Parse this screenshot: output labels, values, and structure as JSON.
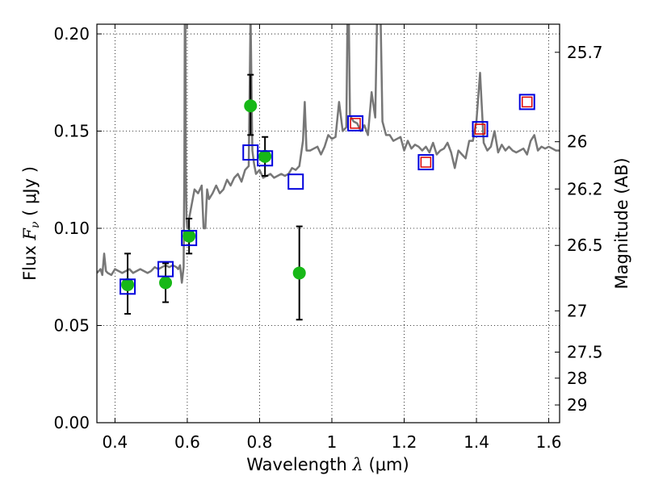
{
  "chart_data": {
    "type": "scatter",
    "xlabel": "Wavelength  λ (μm)",
    "xlabel_prefix": "Wavelength  ",
    "xlabel_sym": "λ",
    "xlabel_unit": " (μm)",
    "ylabel": "Flux  Fν  ( μJy )",
    "ylabel_prefix": "Flux  ",
    "ylabel_sym": "F",
    "ylabel_sub": "ν",
    "ylabel_unit": "  ( μJy )",
    "y2label": "Magnitude (AB)",
    "xlim": [
      0.35,
      1.63
    ],
    "ylim": [
      0.0,
      0.205
    ],
    "grid": true,
    "x_ticks": [
      {
        "v": 0.4,
        "label": "0.4"
      },
      {
        "v": 0.6,
        "label": "0.6"
      },
      {
        "v": 0.8,
        "label": "0.8"
      },
      {
        "v": 1.0,
        "label": "1"
      },
      {
        "v": 1.2,
        "label": "1.2"
      },
      {
        "v": 1.4,
        "label": "1.4"
      },
      {
        "v": 1.6,
        "label": "1.6"
      }
    ],
    "y_ticks": [
      {
        "v": 0.0,
        "label": "0.00"
      },
      {
        "v": 0.05,
        "label": "0.05"
      },
      {
        "v": 0.1,
        "label": "0.10"
      },
      {
        "v": 0.15,
        "label": "0.15"
      },
      {
        "v": 0.2,
        "label": "0.20"
      }
    ],
    "mag_ticks": [
      {
        "v": 25.7,
        "label": "25.7"
      },
      {
        "v": 26.0,
        "label": "26"
      },
      {
        "v": 26.2,
        "label": "26.2"
      },
      {
        "v": 26.5,
        "label": "26.5"
      },
      {
        "v": 27.0,
        "label": "27"
      },
      {
        "v": 27.5,
        "label": "27.5"
      },
      {
        "v": 28.0,
        "label": "28"
      },
      {
        "v": 29.0,
        "label": "29"
      }
    ],
    "series": [
      {
        "type": "line",
        "color": "#777777",
        "x": [
          0.35,
          0.36,
          0.365,
          0.37,
          0.375,
          0.38,
          0.39,
          0.4,
          0.41,
          0.42,
          0.43,
          0.44,
          0.45,
          0.46,
          0.47,
          0.48,
          0.49,
          0.5,
          0.51,
          0.52,
          0.53,
          0.54,
          0.55,
          0.56,
          0.57,
          0.575,
          0.58,
          0.585,
          0.59,
          0.592,
          0.594,
          0.596,
          0.598,
          0.6,
          0.61,
          0.62,
          0.63,
          0.64,
          0.645,
          0.65,
          0.655,
          0.66,
          0.67,
          0.68,
          0.69,
          0.7,
          0.71,
          0.72,
          0.73,
          0.74,
          0.75,
          0.76,
          0.77,
          0.775,
          0.78,
          0.785,
          0.79,
          0.8,
          0.81,
          0.82,
          0.83,
          0.84,
          0.85,
          0.86,
          0.87,
          0.88,
          0.89,
          0.9,
          0.91,
          0.92,
          0.925,
          0.93,
          0.94,
          0.95,
          0.96,
          0.97,
          0.98,
          0.99,
          1.0,
          1.01,
          1.02,
          1.03,
          1.04,
          1.045,
          1.05,
          1.06,
          1.07,
          1.08,
          1.09,
          1.1,
          1.11,
          1.12,
          1.13,
          1.14,
          1.15,
          1.16,
          1.17,
          1.18,
          1.19,
          1.2,
          1.21,
          1.22,
          1.23,
          1.24,
          1.25,
          1.26,
          1.27,
          1.28,
          1.29,
          1.3,
          1.31,
          1.32,
          1.33,
          1.34,
          1.35,
          1.36,
          1.37,
          1.38,
          1.39,
          1.4,
          1.41,
          1.42,
          1.43,
          1.44,
          1.45,
          1.46,
          1.47,
          1.48,
          1.49,
          1.5,
          1.51,
          1.52,
          1.53,
          1.54,
          1.55,
          1.56,
          1.57,
          1.58,
          1.59,
          1.6,
          1.61,
          1.62,
          1.63
        ],
        "y": [
          0.077,
          0.079,
          0.076,
          0.087,
          0.078,
          0.077,
          0.076,
          0.079,
          0.078,
          0.077,
          0.078,
          0.079,
          0.077,
          0.078,
          0.079,
          0.078,
          0.077,
          0.078,
          0.08,
          0.079,
          0.08,
          0.081,
          0.08,
          0.081,
          0.08,
          0.079,
          0.081,
          0.072,
          0.08,
          0.13,
          0.26,
          0.13,
          0.105,
          0.1,
          0.11,
          0.12,
          0.118,
          0.122,
          0.1,
          0.1,
          0.12,
          0.115,
          0.118,
          0.122,
          0.118,
          0.12,
          0.125,
          0.122,
          0.126,
          0.128,
          0.124,
          0.13,
          0.132,
          0.21,
          0.14,
          0.133,
          0.128,
          0.13,
          0.126,
          0.127,
          0.128,
          0.126,
          0.127,
          0.128,
          0.127,
          0.128,
          0.131,
          0.13,
          0.132,
          0.145,
          0.165,
          0.14,
          0.14,
          0.141,
          0.142,
          0.138,
          0.142,
          0.148,
          0.146,
          0.147,
          0.165,
          0.15,
          0.152,
          0.24,
          0.158,
          0.155,
          0.154,
          0.15,
          0.153,
          0.148,
          0.17,
          0.157,
          0.26,
          0.155,
          0.148,
          0.148,
          0.145,
          0.146,
          0.147,
          0.14,
          0.145,
          0.141,
          0.143,
          0.142,
          0.14,
          0.142,
          0.139,
          0.144,
          0.138,
          0.14,
          0.141,
          0.144,
          0.139,
          0.131,
          0.14,
          0.138,
          0.136,
          0.145,
          0.145,
          0.155,
          0.18,
          0.144,
          0.14,
          0.142,
          0.15,
          0.139,
          0.143,
          0.14,
          0.142,
          0.14,
          0.139,
          0.14,
          0.141,
          0.138,
          0.145,
          0.148,
          0.14,
          0.142,
          0.141,
          0.142,
          0.141,
          0.14,
          0.14
        ]
      },
      {
        "name": "",
        "type": "points",
        "marker": "circle",
        "color": "#17b817",
        "x": [
          0.435,
          0.54,
          0.605,
          0.775,
          0.815,
          0.91
        ],
        "y": [
          0.071,
          0.072,
          0.096,
          0.163,
          0.137,
          0.077
        ],
        "yerr_lo": [
          0.056,
          0.062,
          0.087,
          0.148,
          0.127,
          0.053
        ],
        "yerr_hi": [
          0.087,
          0.082,
          0.105,
          0.179,
          0.147,
          0.101
        ]
      },
      {
        "name": "",
        "type": "points",
        "marker": "square-open",
        "color": "#0000dd",
        "x": [
          0.435,
          0.54,
          0.605,
          0.775,
          0.815,
          0.9,
          1.065,
          1.26,
          1.41,
          1.54
        ],
        "y": [
          0.07,
          0.079,
          0.095,
          0.139,
          0.136,
          0.124,
          0.154,
          0.134,
          0.151,
          0.165
        ]
      },
      {
        "name": "",
        "type": "points",
        "marker": "square-open-small",
        "color": "#dd0000",
        "x": [
          1.065,
          1.26,
          1.41,
          1.54
        ],
        "y": [
          0.154,
          0.134,
          0.151,
          0.165
        ]
      }
    ]
  }
}
